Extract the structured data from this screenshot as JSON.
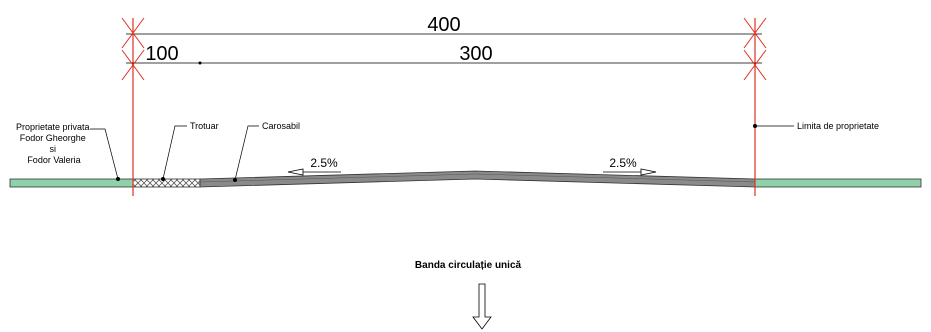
{
  "dimensions": {
    "total": "400",
    "left": "100",
    "right": "300"
  },
  "labels": {
    "property_owner_lines": [
      "Proprietate privata",
      "Fodor Gheorghe",
      "si",
      "Fodor Valeria"
    ],
    "sidewalk": "Trotuar",
    "roadway": "Carosabil",
    "property_limit": "Limita de proprietate",
    "slope_left": "2.5%",
    "slope_right": "2.5%"
  },
  "caption": "Banda circulație unică",
  "colors": {
    "ground": "#8fd1a8",
    "limit_line": "#e0301e",
    "pavement": "#8a8a8a",
    "sidewalk_hatch": "#555555"
  }
}
